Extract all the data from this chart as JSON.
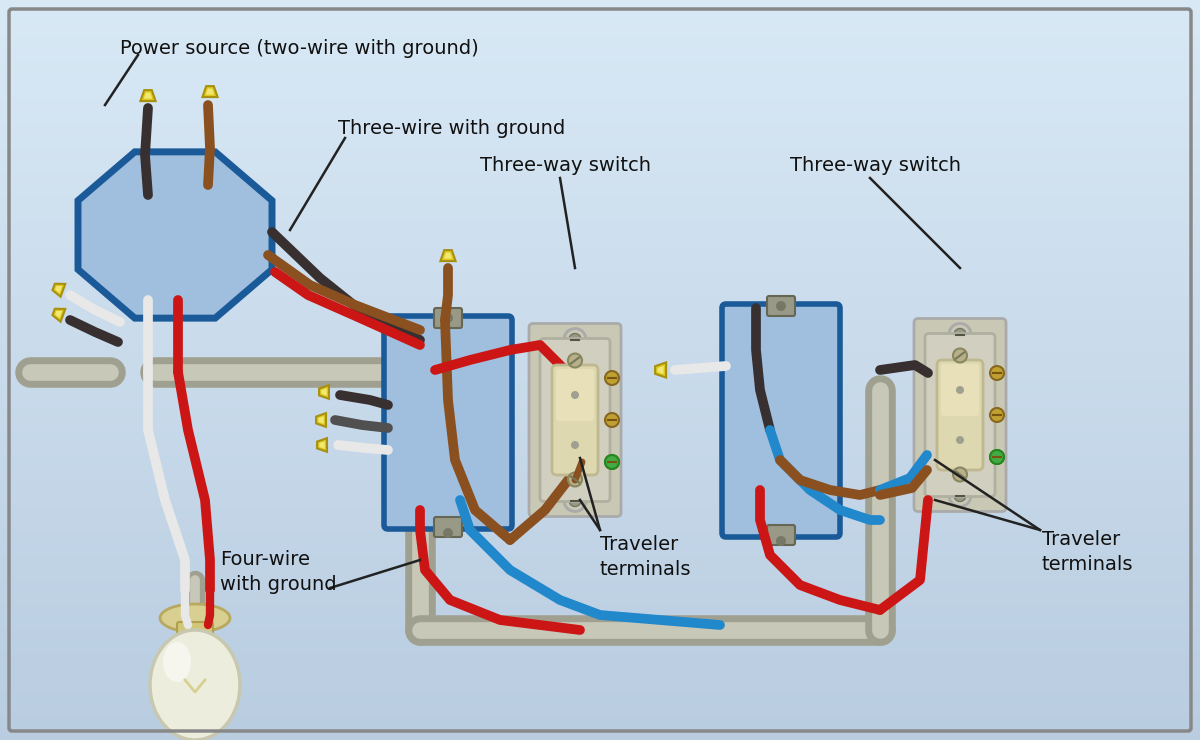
{
  "bg_gradient_top": "#d8e8f4",
  "bg_gradient_bot": "#c0d0e4",
  "bg_color": "#ccd8e8",
  "border_color": "#888888",
  "blue_fill": "#a0bedd",
  "blue_edge": "#1a5a99",
  "conduit_outer": "#a0a090",
  "conduit_inner": "#c8c8b8",
  "wire_black": "#383030",
  "wire_white": "#e8e8e8",
  "wire_red": "#cc1515",
  "wire_brown": "#8a5020",
  "wire_blue": "#2288cc",
  "wire_gray": "#505050",
  "cap_color": "#ddc820",
  "cap_light": "#f0e870",
  "switch_body": "#d0cfc0",
  "switch_rocker": "#ddd8b0",
  "switch_plate": "#c8c8b5",
  "bulb_glass": "#ededde",
  "bulb_base": "#d8cf90",
  "labels": {
    "power": "Power source (two-wire with ground)",
    "three_wire": "Three-wire with ground",
    "four_wire": "Four-wire\nwith ground",
    "sw1": "Three-way switch",
    "sw2": "Three-way switch",
    "trav1": "Traveler\nterminals",
    "trav2": "Traveler\nterminals"
  }
}
